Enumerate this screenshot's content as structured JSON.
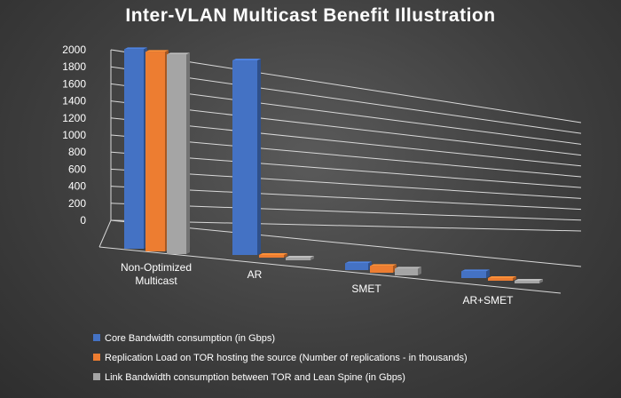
{
  "chart_data": {
    "type": "bar",
    "title": "Inter-VLAN Multicast Benefit Illustration",
    "categories": [
      [
        "Non-Optimized",
        "Multicast"
      ],
      [
        "AR"
      ],
      [
        "SMET"
      ],
      [
        "AR+SMET"
      ]
    ],
    "series": [
      {
        "name": "Core Bandwidth consumption (in Gbps)",
        "color": "#4472C4",
        "values": [
          2000,
          1950,
          80,
          80
        ]
      },
      {
        "name": "Replication Load on TOR hosting the source (Number of replications - in thousands)",
        "color": "#ED7D31",
        "values": [
          2000,
          20,
          80,
          20
        ]
      },
      {
        "name": "Link Bandwidth consumption between TOR and Lean Spine (in Gbps)",
        "color": "#A5A5A5",
        "values": [
          2000,
          20,
          80,
          20
        ]
      }
    ],
    "y_ticks": [
      0,
      200,
      400,
      600,
      800,
      1000,
      1200,
      1400,
      1600,
      1800,
      2000
    ],
    "ylim": [
      0,
      2000
    ],
    "xlabel": "",
    "ylabel": "",
    "grid": true,
    "legend_position": "bottom-left",
    "style": "3d-perspective"
  }
}
